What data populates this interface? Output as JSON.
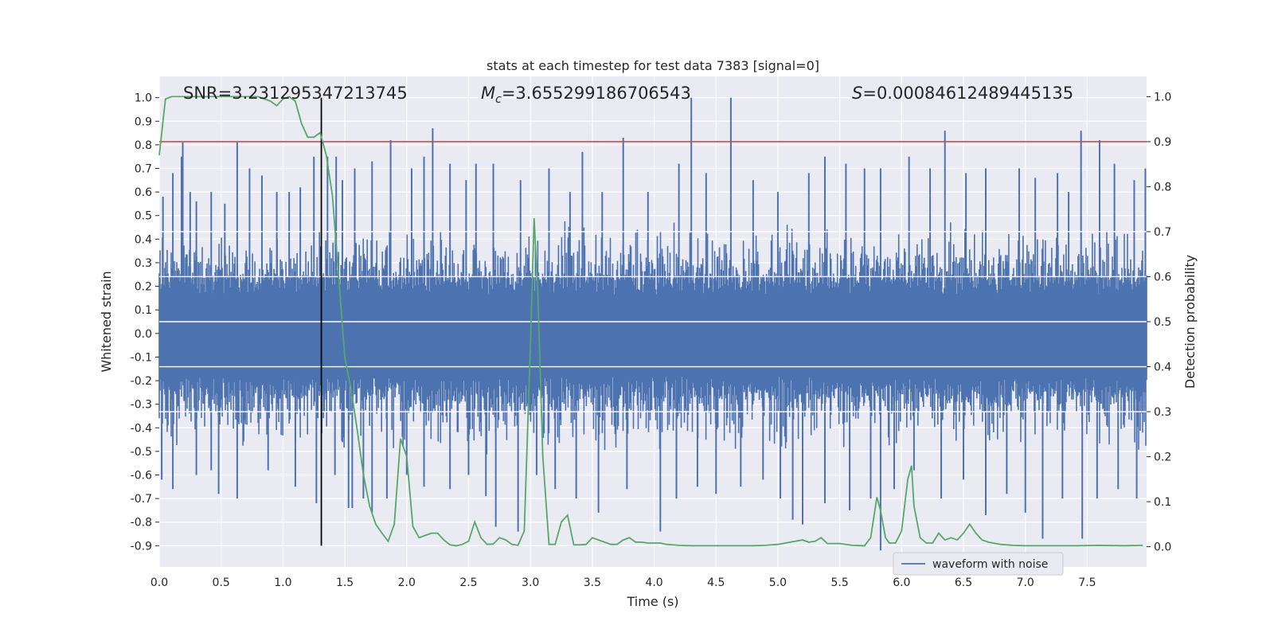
{
  "chart_data": {
    "type": "line",
    "title": "stats at each timestep for test data 7383 [signal=0]",
    "xlabel": "Time (s)",
    "ylabel_left": "Whitened strain",
    "ylabel_right": "Detection probability",
    "xlim": [
      0.0,
      7.98
    ],
    "ylim_left": [
      -0.99,
      1.09
    ],
    "ylim_right": [
      -0.045,
      1.045
    ],
    "x_ticks": [
      "0.0",
      "0.5",
      "1.0",
      "1.5",
      "2.0",
      "2.5",
      "3.0",
      "3.5",
      "4.0",
      "4.5",
      "5.0",
      "5.5",
      "6.0",
      "6.5",
      "7.0",
      "7.5"
    ],
    "y_left_ticks": [
      "1.0",
      "0.9",
      "0.8",
      "0.7",
      "0.6",
      "0.5",
      "0.4",
      "0.3",
      "0.2",
      "0.1",
      "0.0",
      "-0.1",
      "-0.2",
      "-0.3",
      "-0.4",
      "-0.5",
      "-0.6",
      "-0.7",
      "-0.8",
      "-0.9"
    ],
    "y_right_ticks": [
      "1.0",
      "0.9",
      "0.8",
      "0.7",
      "0.6",
      "0.5",
      "0.4",
      "0.3",
      "0.2",
      "0.1",
      "0.0"
    ],
    "annotations": {
      "snr": "SNR=3.231295347213745",
      "mc_symbol": "M",
      "mc_sub": "c",
      "mc_value": "=3.655299186706543",
      "s_symbol": "S",
      "s_value": "=0.00084612489445135"
    },
    "threshold": {
      "value": 0.9,
      "axis": "right",
      "color": "#c44e52"
    },
    "marker_time": 1.31,
    "legend": {
      "label": "waveform with noise",
      "location": "lower-right"
    },
    "series": [
      {
        "name": "waveform with noise",
        "axis": "left",
        "color": "#4c72b0",
        "type": "noise",
        "t_range": [
          0.0,
          7.98
        ],
        "typical_upper": 0.3,
        "typical_lower": -0.33,
        "spikes": [
          {
            "t": 0.03,
            "v": 0.58
          },
          {
            "t": 0.11,
            "v": 0.68
          },
          {
            "t": 0.18,
            "v": 0.75
          },
          {
            "t": 0.19,
            "v": 0.81
          },
          {
            "t": 0.25,
            "v": 0.6
          },
          {
            "t": 0.3,
            "v": 0.56
          },
          {
            "t": 0.42,
            "v": 0.6
          },
          {
            "t": 0.53,
            "v": 0.55
          },
          {
            "t": 0.63,
            "v": 0.81
          },
          {
            "t": 0.73,
            "v": 0.7
          },
          {
            "t": 0.83,
            "v": 0.67
          },
          {
            "t": 0.95,
            "v": 0.6
          },
          {
            "t": 1.05,
            "v": 0.6
          },
          {
            "t": 1.14,
            "v": 0.62
          },
          {
            "t": 1.25,
            "v": 0.75
          },
          {
            "t": 1.36,
            "v": 0.75
          },
          {
            "t": 1.43,
            "v": 0.75
          },
          {
            "t": 1.48,
            "v": 0.65
          },
          {
            "t": 1.58,
            "v": 0.7
          },
          {
            "t": 1.72,
            "v": 0.73
          },
          {
            "t": 1.87,
            "v": 0.82
          },
          {
            "t": 2.04,
            "v": 0.7
          },
          {
            "t": 2.14,
            "v": 0.75
          },
          {
            "t": 2.21,
            "v": 0.87
          },
          {
            "t": 2.35,
            "v": 0.72
          },
          {
            "t": 2.48,
            "v": 0.65
          },
          {
            "t": 2.56,
            "v": 0.72
          },
          {
            "t": 2.7,
            "v": 0.72
          },
          {
            "t": 2.92,
            "v": 0.65
          },
          {
            "t": 3.15,
            "v": 0.7
          },
          {
            "t": 3.32,
            "v": 0.6
          },
          {
            "t": 3.42,
            "v": 0.77
          },
          {
            "t": 3.58,
            "v": 0.6
          },
          {
            "t": 3.75,
            "v": 0.83
          },
          {
            "t": 3.95,
            "v": 0.6
          },
          {
            "t": 4.2,
            "v": 0.72
          },
          {
            "t": 4.3,
            "v": 1.0
          },
          {
            "t": 4.42,
            "v": 0.68
          },
          {
            "t": 4.62,
            "v": 1.0
          },
          {
            "t": 4.8,
            "v": 0.65
          },
          {
            "t": 5.0,
            "v": 0.6
          },
          {
            "t": 5.25,
            "v": 0.68
          },
          {
            "t": 5.38,
            "v": 0.75
          },
          {
            "t": 5.55,
            "v": 0.72
          },
          {
            "t": 5.7,
            "v": 0.7
          },
          {
            "t": 5.83,
            "v": 0.7
          },
          {
            "t": 6.06,
            "v": 0.75
          },
          {
            "t": 6.23,
            "v": 0.7
          },
          {
            "t": 6.35,
            "v": 0.86
          },
          {
            "t": 6.52,
            "v": 0.68
          },
          {
            "t": 6.68,
            "v": 0.7
          },
          {
            "t": 6.95,
            "v": 0.7
          },
          {
            "t": 7.08,
            "v": 0.66
          },
          {
            "t": 7.26,
            "v": 0.68
          },
          {
            "t": 7.35,
            "v": 0.6
          },
          {
            "t": 7.45,
            "v": 0.86
          },
          {
            "t": 7.6,
            "v": 0.82
          },
          {
            "t": 7.72,
            "v": 0.72
          },
          {
            "t": 7.88,
            "v": 0.65
          },
          {
            "t": 7.97,
            "v": 0.7
          },
          {
            "t": 0.02,
            "v": -0.62
          },
          {
            "t": 0.11,
            "v": -0.66
          },
          {
            "t": 0.3,
            "v": -0.6
          },
          {
            "t": 0.42,
            "v": -0.58
          },
          {
            "t": 0.48,
            "v": -0.68
          },
          {
            "t": 0.63,
            "v": -0.7
          },
          {
            "t": 0.88,
            "v": -0.58
          },
          {
            "t": 1.1,
            "v": -0.65
          },
          {
            "t": 1.27,
            "v": -0.72
          },
          {
            "t": 1.42,
            "v": -0.6
          },
          {
            "t": 1.53,
            "v": -0.74
          },
          {
            "t": 1.56,
            "v": -0.74
          },
          {
            "t": 1.65,
            "v": -0.7
          },
          {
            "t": 1.72,
            "v": -0.76
          },
          {
            "t": 1.84,
            "v": -0.7
          },
          {
            "t": 2.0,
            "v": -0.6
          },
          {
            "t": 2.14,
            "v": -0.65
          },
          {
            "t": 2.35,
            "v": -0.66
          },
          {
            "t": 2.5,
            "v": -0.6
          },
          {
            "t": 2.64,
            "v": -0.69
          },
          {
            "t": 2.72,
            "v": -0.82
          },
          {
            "t": 2.9,
            "v": -0.84
          },
          {
            "t": 3.05,
            "v": -0.6
          },
          {
            "t": 3.2,
            "v": -0.66
          },
          {
            "t": 3.37,
            "v": -0.7
          },
          {
            "t": 3.55,
            "v": -0.76
          },
          {
            "t": 3.78,
            "v": -0.66
          },
          {
            "t": 4.05,
            "v": -0.84
          },
          {
            "t": 4.18,
            "v": -0.7
          },
          {
            "t": 4.35,
            "v": -0.65
          },
          {
            "t": 4.5,
            "v": -0.68
          },
          {
            "t": 4.7,
            "v": -0.65
          },
          {
            "t": 4.88,
            "v": -0.62
          },
          {
            "t": 5.02,
            "v": -0.7
          },
          {
            "t": 5.12,
            "v": -0.79
          },
          {
            "t": 5.2,
            "v": -0.81
          },
          {
            "t": 5.38,
            "v": -0.72
          },
          {
            "t": 5.58,
            "v": -0.75
          },
          {
            "t": 5.75,
            "v": -0.7
          },
          {
            "t": 5.83,
            "v": -0.92
          },
          {
            "t": 5.94,
            "v": -0.66
          },
          {
            "t": 6.1,
            "v": -0.58
          },
          {
            "t": 6.32,
            "v": -0.7
          },
          {
            "t": 6.5,
            "v": -0.62
          },
          {
            "t": 6.68,
            "v": -0.77
          },
          {
            "t": 6.85,
            "v": -0.68
          },
          {
            "t": 7.0,
            "v": -0.76
          },
          {
            "t": 7.14,
            "v": -0.87
          },
          {
            "t": 7.3,
            "v": -0.7
          },
          {
            "t": 7.46,
            "v": -0.87
          },
          {
            "t": 7.58,
            "v": -0.7
          },
          {
            "t": 7.75,
            "v": -0.66
          },
          {
            "t": 7.9,
            "v": -0.7
          }
        ]
      },
      {
        "name": "detection probability",
        "axis": "right",
        "color": "#55a868",
        "x": [
          0.0,
          0.05,
          0.1,
          0.2,
          0.3,
          0.4,
          0.5,
          0.6,
          0.7,
          0.8,
          0.9,
          0.95,
          1.0,
          1.05,
          1.1,
          1.15,
          1.2,
          1.25,
          1.3,
          1.35,
          1.4,
          1.45,
          1.5,
          1.55,
          1.6,
          1.65,
          1.7,
          1.75,
          1.8,
          1.85,
          1.9,
          1.95,
          2.0,
          2.05,
          2.1,
          2.15,
          2.2,
          2.25,
          2.3,
          2.35,
          2.4,
          2.45,
          2.5,
          2.55,
          2.6,
          2.65,
          2.7,
          2.75,
          2.8,
          2.85,
          2.9,
          2.95,
          3.0,
          3.03,
          3.06,
          3.1,
          3.15,
          3.2,
          3.25,
          3.3,
          3.35,
          3.4,
          3.45,
          3.5,
          3.55,
          3.6,
          3.65,
          3.7,
          3.75,
          3.8,
          3.85,
          3.9,
          3.95,
          4.0,
          4.05,
          4.1,
          4.2,
          4.3,
          4.4,
          4.5,
          4.6,
          4.7,
          4.8,
          4.9,
          5.0,
          5.1,
          5.2,
          5.25,
          5.3,
          5.35,
          5.4,
          5.5,
          5.6,
          5.7,
          5.75,
          5.8,
          5.83,
          5.87,
          5.9,
          5.95,
          6.0,
          6.05,
          6.08,
          6.1,
          6.15,
          6.2,
          6.25,
          6.3,
          6.35,
          6.4,
          6.45,
          6.5,
          6.55,
          6.6,
          6.65,
          6.7,
          6.8,
          6.9,
          7.0,
          7.2,
          7.4,
          7.6,
          7.8,
          7.95
        ],
        "y": [
          0.87,
          0.995,
          1.0,
          1.0,
          1.0,
          1.0,
          1.0,
          1.0,
          1.0,
          1.0,
          0.99,
          0.98,
          0.995,
          1.0,
          0.99,
          0.94,
          0.91,
          0.91,
          0.92,
          0.87,
          0.78,
          0.6,
          0.42,
          0.35,
          0.26,
          0.16,
          0.09,
          0.05,
          0.03,
          0.012,
          0.05,
          0.24,
          0.2,
          0.045,
          0.02,
          0.025,
          0.03,
          0.03,
          0.015,
          0.004,
          0.002,
          0.005,
          0.012,
          0.055,
          0.02,
          0.005,
          0.006,
          0.02,
          0.015,
          0.005,
          0.003,
          0.035,
          0.45,
          0.73,
          0.56,
          0.2,
          0.005,
          0.005,
          0.055,
          0.07,
          0.004,
          0.004,
          0.005,
          0.02,
          0.015,
          0.01,
          0.005,
          0.005,
          0.015,
          0.02,
          0.01,
          0.01,
          0.008,
          0.008,
          0.008,
          0.005,
          0.003,
          0.002,
          0.002,
          0.002,
          0.002,
          0.002,
          0.002,
          0.003,
          0.005,
          0.01,
          0.015,
          0.01,
          0.012,
          0.02,
          0.007,
          0.007,
          0.003,
          0.002,
          0.02,
          0.11,
          0.08,
          0.02,
          0.008,
          0.008,
          0.035,
          0.15,
          0.18,
          0.09,
          0.02,
          0.008,
          0.008,
          0.03,
          0.015,
          0.02,
          0.015,
          0.03,
          0.05,
          0.03,
          0.015,
          0.01,
          0.005,
          0.003,
          0.002,
          0.002,
          0.002,
          0.003,
          0.002,
          0.003
        ]
      }
    ]
  }
}
